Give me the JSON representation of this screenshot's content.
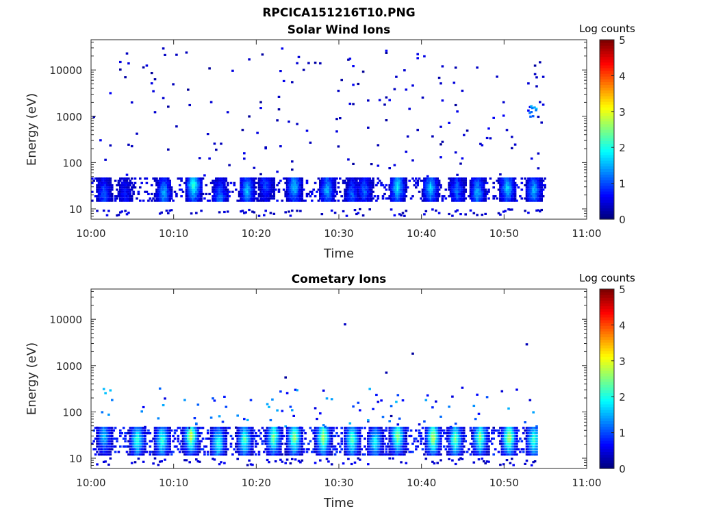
{
  "figure_title": "RPCICA151216T10.PNG",
  "colormap": "jet",
  "colors": {
    "axis": "#262626",
    "background": "#ffffff",
    "low": "#00008f",
    "high": "#800000"
  },
  "chart_data": [
    {
      "type": "heatmap",
      "title": "Solar Wind Ions",
      "xlabel": "Time",
      "ylabel": "Energy (eV)",
      "x_ticks": [
        "10:00",
        "10:10",
        "10:20",
        "10:30",
        "10:40",
        "10:50",
        "11:00"
      ],
      "x_tick_minutes": [
        0,
        10,
        20,
        30,
        40,
        50,
        60
      ],
      "xlim_minutes": [
        0,
        60
      ],
      "y_scale": "log",
      "ylim": [
        6,
        45000
      ],
      "y_ticks": [
        "10",
        "100",
        "1000",
        "10000"
      ],
      "y_tick_values": [
        10,
        100,
        1000,
        10000
      ],
      "colorbar_label": "Log counts",
      "colorbar_ticks": [
        "0",
        "1",
        "2",
        "3",
        "4",
        "5"
      ],
      "clim": [
        0,
        5
      ],
      "data_minutes": [
        0,
        55
      ],
      "low_band": {
        "energy_range": [
          15,
          45
        ],
        "typical_level": [
          0.3,
          1.8
        ]
      },
      "burst_peaks": [
        {
          "minute": 1.5,
          "energy": 20,
          "level": 1.0
        },
        {
          "minute": 4.0,
          "energy": 20,
          "level": 0.6
        },
        {
          "minute": 8.7,
          "energy": 22,
          "level": 1.4
        },
        {
          "minute": 12.3,
          "energy": 32,
          "level": 2.2
        },
        {
          "minute": 15.5,
          "energy": 18,
          "level": 1.2
        },
        {
          "minute": 18.8,
          "energy": 25,
          "level": 1.5
        },
        {
          "minute": 21.0,
          "energy": 32,
          "level": 0.9
        },
        {
          "minute": 24.5,
          "energy": 30,
          "level": 1.6
        },
        {
          "minute": 28.5,
          "energy": 26,
          "level": 1.5
        },
        {
          "minute": 31.5,
          "energy": 20,
          "level": 1.0
        },
        {
          "minute": 33.0,
          "energy": 25,
          "level": 1.0
        },
        {
          "minute": 37.0,
          "energy": 30,
          "level": 1.8
        },
        {
          "minute": 41.0,
          "energy": 28,
          "level": 1.6
        },
        {
          "minute": 44.2,
          "energy": 25,
          "level": 1.1
        },
        {
          "minute": 46.7,
          "energy": 22,
          "level": 1.5
        },
        {
          "minute": 50.3,
          "energy": 28,
          "level": 1.6
        },
        {
          "minute": 53.5,
          "energy": 25,
          "level": 1.5
        },
        {
          "minute": 53.5,
          "energy": 1300,
          "level": 1.7
        }
      ],
      "sparse_background": {
        "energy_range": [
          50,
          30000
        ],
        "typical_level": [
          0.1,
          0.6
        ]
      }
    },
    {
      "type": "heatmap",
      "title": "Cometary Ions",
      "xlabel": "Time",
      "ylabel": "Energy (eV)",
      "x_ticks": [
        "10:00",
        "10:10",
        "10:20",
        "10:30",
        "10:40",
        "10:50",
        "11:00"
      ],
      "x_tick_minutes": [
        0,
        10,
        20,
        30,
        40,
        50,
        60
      ],
      "xlim_minutes": [
        0,
        60
      ],
      "y_scale": "log",
      "ylim": [
        6,
        45000
      ],
      "y_ticks": [
        "10",
        "100",
        "1000",
        "10000"
      ],
      "y_tick_values": [
        10,
        100,
        1000,
        10000
      ],
      "colorbar_label": "Log counts",
      "colorbar_ticks": [
        "0",
        "1",
        "2",
        "3",
        "4",
        "5"
      ],
      "clim": [
        0,
        5
      ],
      "data_minutes": [
        0,
        54
      ],
      "low_band": {
        "energy_range": [
          12,
          45
        ],
        "typical_level": [
          0.5,
          2.5
        ]
      },
      "burst_peaks": [
        {
          "minute": 1.5,
          "energy": 30,
          "level": 1.6
        },
        {
          "minute": 5.5,
          "energy": 25,
          "level": 2.2
        },
        {
          "minute": 8.5,
          "energy": 25,
          "level": 2.2
        },
        {
          "minute": 12.0,
          "energy": 30,
          "level": 2.9
        },
        {
          "minute": 15.3,
          "energy": 22,
          "level": 2.1
        },
        {
          "minute": 18.5,
          "energy": 25,
          "level": 2.3
        },
        {
          "minute": 22.0,
          "energy": 28,
          "level": 2.5
        },
        {
          "minute": 24.5,
          "energy": 28,
          "level": 2.7
        },
        {
          "minute": 28.0,
          "energy": 28,
          "level": 2.8
        },
        {
          "minute": 31.5,
          "energy": 25,
          "level": 2.4
        },
        {
          "minute": 34.3,
          "energy": 22,
          "level": 2.0
        },
        {
          "minute": 37.0,
          "energy": 30,
          "level": 2.6
        },
        {
          "minute": 41.3,
          "energy": 28,
          "level": 2.9
        },
        {
          "minute": 44.0,
          "energy": 25,
          "level": 2.4
        },
        {
          "minute": 47.0,
          "energy": 28,
          "level": 2.6
        },
        {
          "minute": 50.5,
          "energy": 28,
          "level": 2.8
        },
        {
          "minute": 53.5,
          "energy": 25,
          "level": 2.3
        }
      ],
      "sparse_background": {
        "energy_range": [
          45,
          9500
        ],
        "typical_level": [
          0.1,
          0.6
        ]
      }
    }
  ]
}
